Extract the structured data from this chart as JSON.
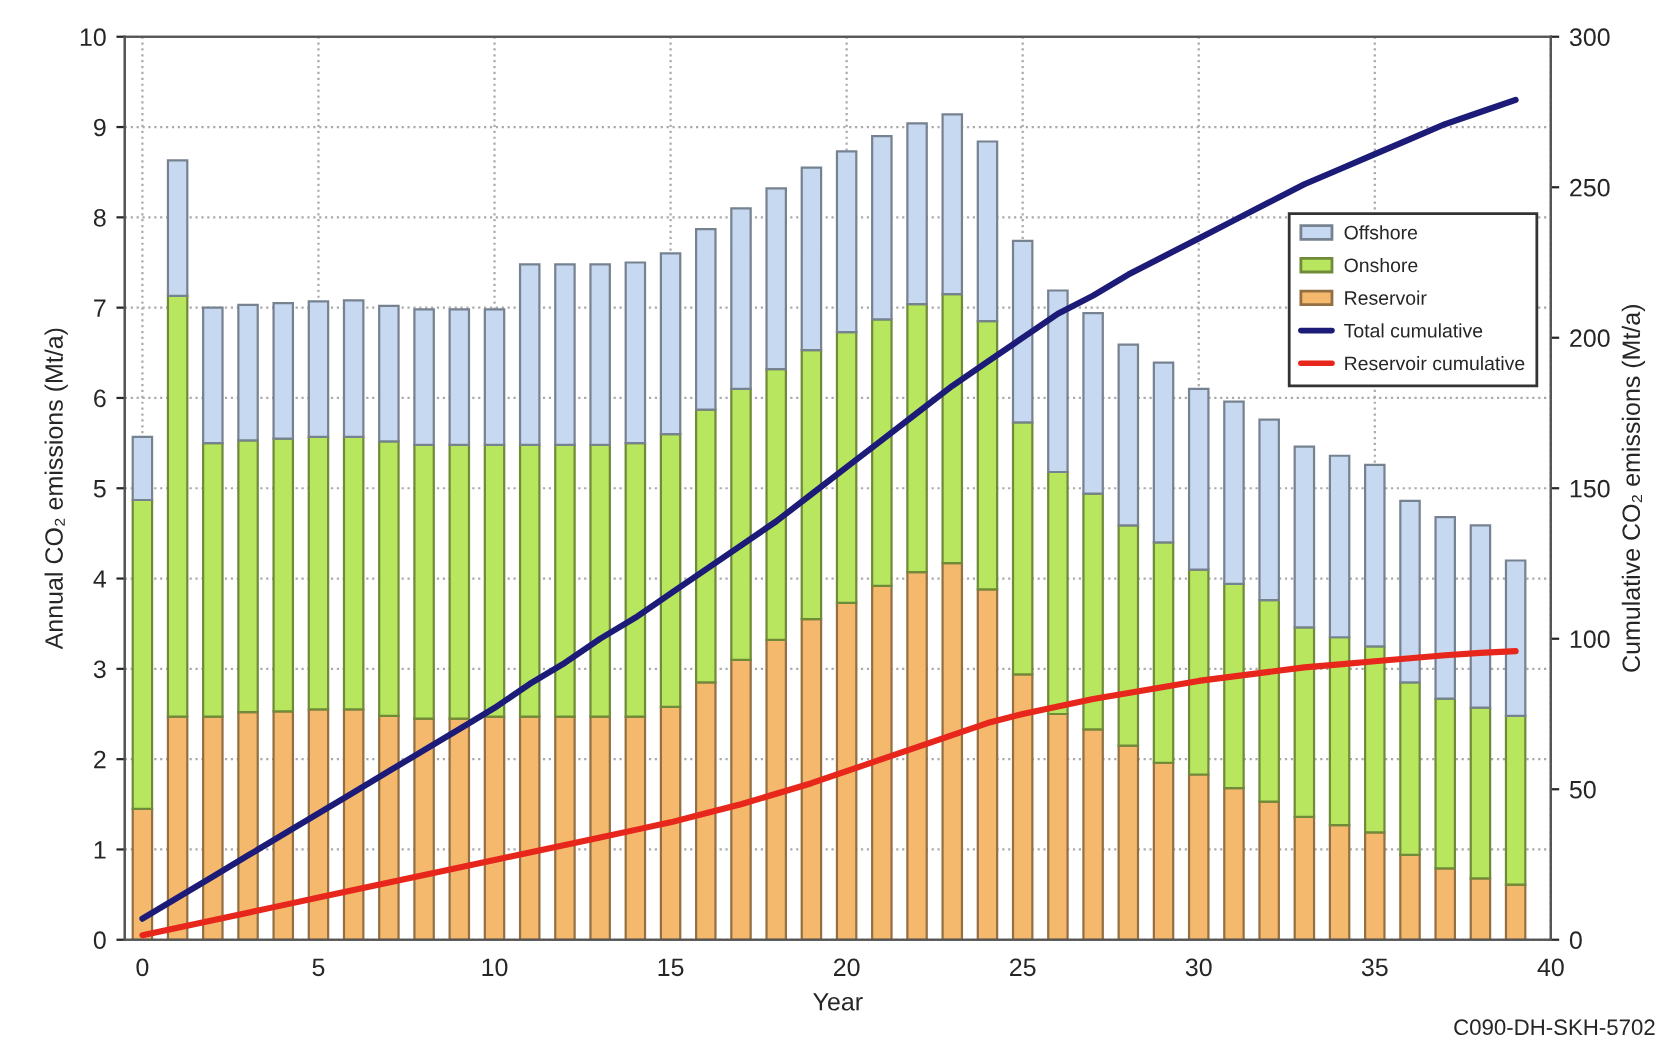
{
  "chart_data": {
    "type": "bar",
    "stacked": true,
    "xlabel": "Year",
    "ylabel": "Annual CO₂ emissions (Mt/a)",
    "y2label": "Cumulative CO₂ emissions (Mt/a)",
    "x": [
      0,
      1,
      2,
      3,
      4,
      5,
      6,
      7,
      8,
      9,
      10,
      11,
      12,
      13,
      14,
      15,
      16,
      17,
      18,
      19,
      20,
      21,
      22,
      23,
      24,
      25,
      26,
      27,
      28,
      29,
      30,
      31,
      32,
      33,
      34,
      35,
      36,
      37,
      38,
      39
    ],
    "xlim": [
      -0.5,
      40
    ],
    "xticks": [
      0,
      5,
      10,
      15,
      20,
      25,
      30,
      35,
      40
    ],
    "ylim": [
      0,
      10
    ],
    "yticks": [
      0,
      1,
      2,
      3,
      4,
      5,
      6,
      7,
      8,
      9,
      10
    ],
    "y2lim": [
      0,
      300
    ],
    "y2ticks": [
      0,
      50,
      100,
      150,
      200,
      250,
      300
    ],
    "grid": true,
    "legend": "top right",
    "series": [
      {
        "name": "Reservoir",
        "color": "#f5b96e",
        "values": [
          1.45,
          2.47,
          2.47,
          2.52,
          2.53,
          2.55,
          2.55,
          2.48,
          2.45,
          2.45,
          2.47,
          2.47,
          2.47,
          2.47,
          2.47,
          2.58,
          2.85,
          3.1,
          3.32,
          3.55,
          3.73,
          3.92,
          4.07,
          4.17,
          3.88,
          2.94,
          2.5,
          2.33,
          2.15,
          1.96,
          1.83,
          1.68,
          1.53,
          1.36,
          1.27,
          1.19,
          0.94,
          0.79,
          0.68,
          0.61
        ]
      },
      {
        "name": "Onshore",
        "color": "#b9e65f",
        "values": [
          3.42,
          4.66,
          3.03,
          3.01,
          3.02,
          3.02,
          3.02,
          3.04,
          3.03,
          3.03,
          3.01,
          3.01,
          3.01,
          3.01,
          3.03,
          3.02,
          3.02,
          3.0,
          3.0,
          2.98,
          3.0,
          2.95,
          2.97,
          2.98,
          2.97,
          2.79,
          2.68,
          2.61,
          2.44,
          2.44,
          2.27,
          2.26,
          2.23,
          2.1,
          2.08,
          2.06,
          1.91,
          1.88,
          1.89,
          1.87
        ]
      },
      {
        "name": "Offshore",
        "color": "#c6d9f0",
        "values": [
          0.7,
          1.5,
          1.5,
          1.5,
          1.5,
          1.5,
          1.51,
          1.5,
          1.5,
          1.5,
          1.5,
          2.0,
          2.0,
          2.0,
          2.0,
          2.0,
          2.0,
          2.0,
          2.0,
          2.02,
          2.0,
          2.03,
          2.0,
          1.99,
          1.99,
          2.01,
          2.01,
          2.0,
          2.0,
          1.99,
          2.0,
          2.02,
          2.0,
          2.0,
          2.01,
          2.01,
          2.01,
          2.01,
          2.02,
          1.72
        ]
      },
      {
        "name": "Total cumulative",
        "type": "line",
        "axis": "y2",
        "color": "#1c1c78",
        "values": [
          7,
          14,
          21,
          28,
          35,
          42,
          49,
          56,
          63,
          70,
          77,
          85,
          92,
          100,
          107,
          115,
          123,
          131,
          139,
          148,
          157,
          166,
          175,
          184,
          192,
          200,
          208,
          214,
          221,
          227,
          233,
          239,
          245,
          251,
          256,
          261,
          266,
          271,
          275,
          279
        ]
      },
      {
        "name": "Reservoir cumulative",
        "type": "line",
        "axis": "y2",
        "color": "#e8271c",
        "values": [
          1.5,
          4,
          6.5,
          9,
          11.5,
          14,
          16.5,
          19,
          21.5,
          24,
          26.5,
          29,
          31.5,
          34,
          36.5,
          39,
          42,
          45,
          48.5,
          52,
          56,
          60,
          64,
          68,
          72,
          75,
          77.5,
          80,
          82,
          84,
          86,
          87.5,
          89,
          90.5,
          91.5,
          92.5,
          93.5,
          94.5,
          95.3,
          95.9
        ]
      }
    ],
    "annotations": [
      "C090-DH-SKH-5702"
    ]
  }
}
